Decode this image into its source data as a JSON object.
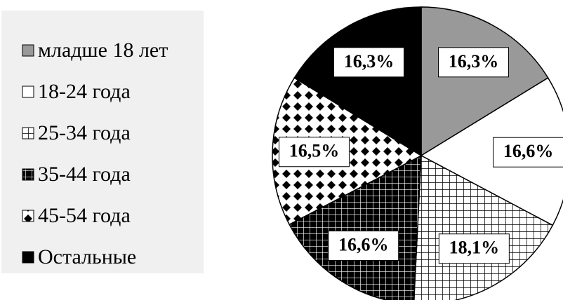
{
  "chart_data": {
    "type": "pie",
    "categories": [
      "младше 18 лет",
      "18-24 года",
      "25-34 года",
      "35-44 года",
      "45-54 года",
      "Остальные"
    ],
    "values": [
      16.3,
      16.6,
      18.1,
      16.6,
      16.5,
      16.3
    ],
    "value_labels": [
      "16,3%",
      "16,6%",
      "18,1%",
      "16,6%",
      "16,5%",
      "16,3%"
    ]
  }
}
